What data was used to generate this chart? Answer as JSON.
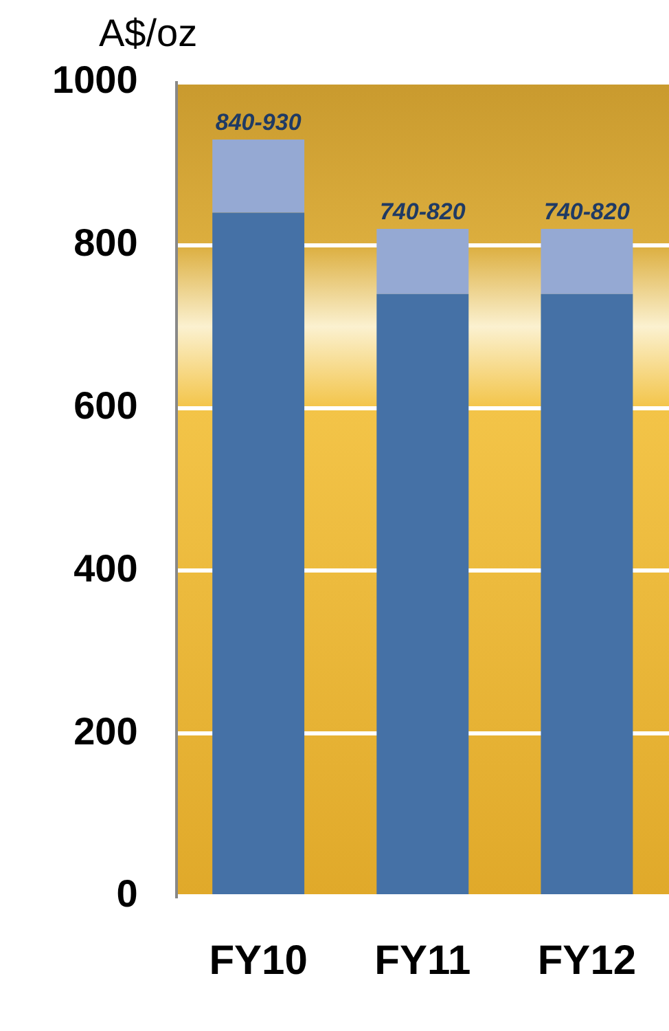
{
  "chart_data": {
    "type": "bar",
    "ylabel": "A$/oz",
    "categories": [
      "FY10",
      "FY11",
      "FY12"
    ],
    "stacked": true,
    "series": [
      {
        "color": "#4571a6",
        "values": [
          840,
          740,
          740
        ]
      },
      {
        "color": "#95a9d3",
        "values": [
          90,
          80,
          80
        ],
        "value_labels": [
          "840-930",
          "740-820",
          "740-820"
        ]
      }
    ],
    "ylim": [
      0,
      1000
    ],
    "yticks": [
      0,
      200,
      400,
      600,
      800,
      1000
    ],
    "grid": "y",
    "legend": false
  }
}
